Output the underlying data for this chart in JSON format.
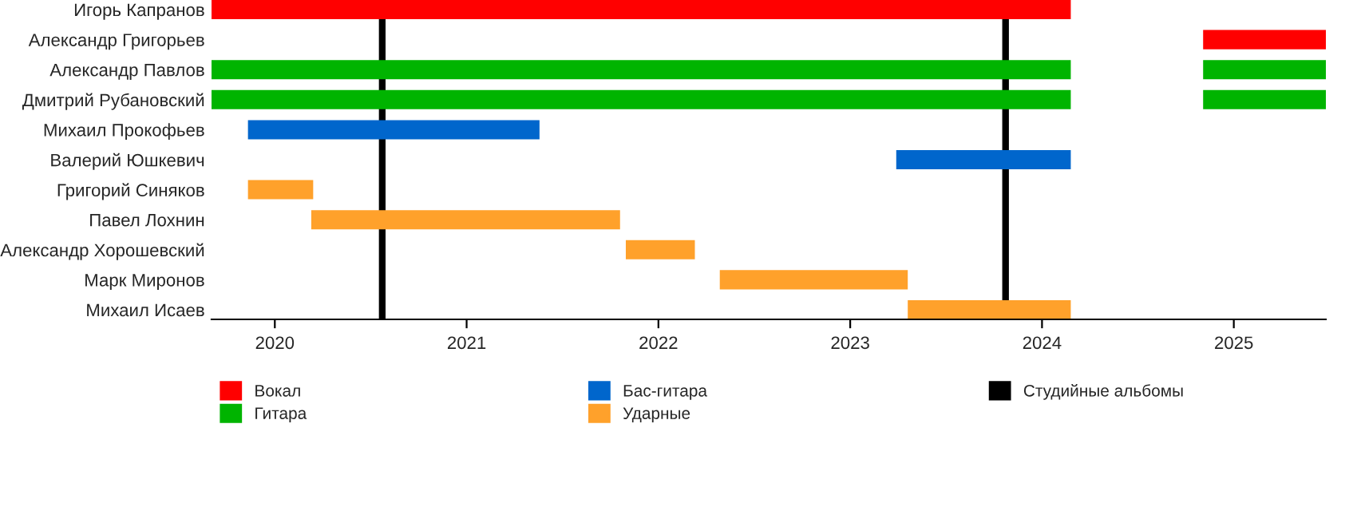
{
  "chart_data": {
    "type": "bar",
    "orientation": "horizontal",
    "categories": [
      "Игорь Капранов",
      "Александр Григорьев",
      "Александр Павлов",
      "Дмитрий Рубановский",
      "Михаил Прокофьев",
      "Валерий Юшкевич",
      "Григорий Синяков",
      "Павел Лохнин",
      "Александр Хорошевский",
      "Марк Миронов",
      "Михаил Исаев"
    ],
    "series": [
      {
        "name": "Вокал",
        "color": "#ff0000",
        "base": [
          2019.67,
          2024.84,
          null,
          null,
          null,
          null,
          null,
          null,
          null,
          null,
          null
        ],
        "values": [
          4.48,
          0.64,
          null,
          null,
          null,
          null,
          null,
          null,
          null,
          null,
          null
        ]
      },
      {
        "name": "Гитара",
        "color": "#00b400",
        "base": [
          null,
          null,
          2019.67,
          2019.67,
          null,
          null,
          null,
          null,
          null,
          null,
          null
        ],
        "values": [
          null,
          null,
          4.48,
          4.48,
          null,
          null,
          null,
          null,
          null,
          null,
          null
        ]
      },
      {
        "color": "#00b400",
        "base": [
          null,
          null,
          2024.84,
          2024.84,
          null,
          null,
          null,
          null,
          null,
          null,
          null
        ],
        "values": [
          null,
          null,
          0.64,
          0.64,
          null,
          null,
          null,
          null,
          null,
          null,
          null
        ]
      },
      {
        "name": "Бас-гитара",
        "color": "#0066cc",
        "base": [
          null,
          null,
          null,
          null,
          2019.86,
          2023.24,
          null,
          null,
          null,
          null,
          null
        ],
        "values": [
          null,
          null,
          null,
          null,
          1.52,
          0.91,
          null,
          null,
          null,
          null,
          null
        ]
      },
      {
        "name": "Ударные",
        "color": "#ffa12b",
        "base": [
          null,
          null,
          null,
          null,
          null,
          null,
          2019.86,
          2020.19,
          2021.83,
          2022.32,
          2023.3
        ],
        "values": [
          null,
          null,
          null,
          null,
          null,
          null,
          0.34,
          1.61,
          0.36,
          0.98,
          0.85
        ]
      }
    ],
    "ref_lines": [
      {
        "axis": "x",
        "value": 2020.56,
        "label": "Студийные альбомы",
        "color": "#000000"
      },
      {
        "axis": "x",
        "value": 2023.81,
        "color": "#000000"
      }
    ],
    "xlim": [
      2019.67,
      2025.48
    ],
    "xticks": [
      2020,
      2021,
      2022,
      2023,
      2024,
      2025
    ],
    "grid": false,
    "legend": "bottom"
  }
}
